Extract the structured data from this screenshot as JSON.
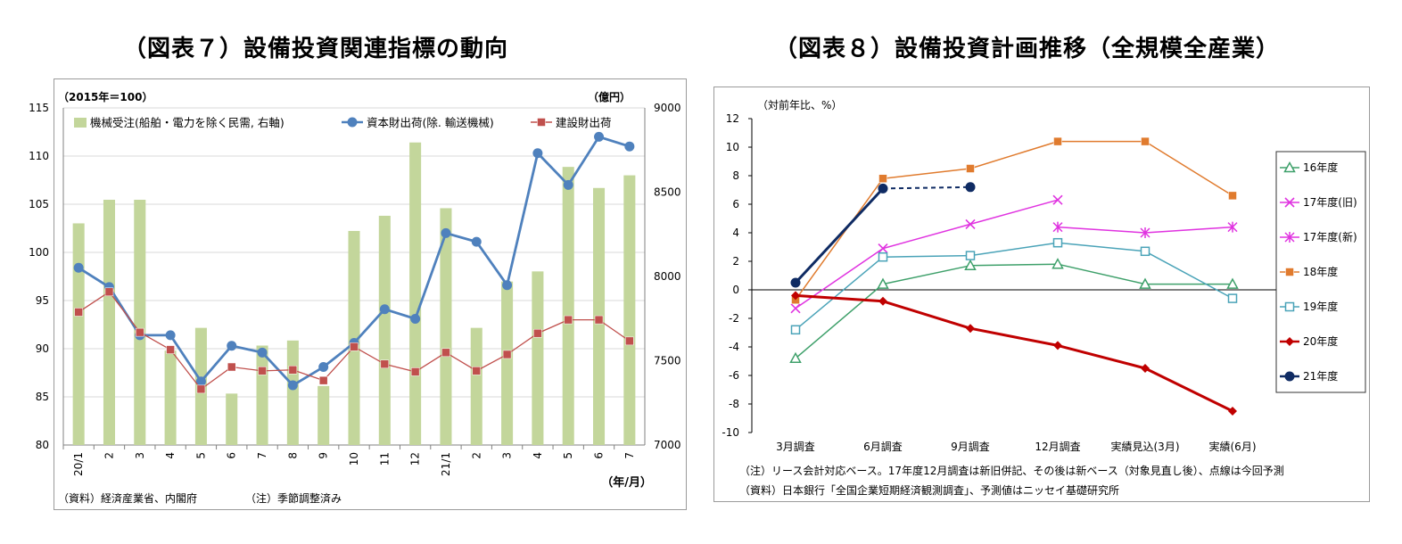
{
  "left_title": "（図表７）設備投資関連指標の動向",
  "right_title": "（図表８）設備投資計画推移（全規模全産業）",
  "chart_data": [
    {
      "type": "bar+line",
      "title": "（図表７）設備投資関連指標の動向",
      "ylabel_left": "（2015年＝100）",
      "ylabel_right": "（億円）",
      "xlabel": "（年/月）",
      "ylim_left": [
        80,
        115
      ],
      "yticks_left": [
        "80",
        "85",
        "90",
        "95",
        "100",
        "105",
        "110",
        "115"
      ],
      "ylim_right": [
        7000,
        9000
      ],
      "yticks_right": [
        "7000",
        "7500",
        "8000",
        "8500",
        "9000"
      ],
      "categories": [
        "20/1",
        "2",
        "3",
        "4",
        "5",
        "6",
        "7",
        "8",
        "9",
        "10",
        "11",
        "12",
        "21/1",
        "2",
        "3",
        "4",
        "5",
        "6",
        "7"
      ],
      "series": [
        {
          "name": "機械受注(船舶・電力を除く民需, 右軸)",
          "kind": "bar",
          "axis": "right",
          "color": "#c3d69b",
          "values": [
            8315,
            8455,
            8455,
            7560,
            7695,
            7305,
            7590,
            7620,
            7350,
            8270,
            8360,
            8795,
            8405,
            7695,
            7970,
            8030,
            8650,
            8525,
            8600
          ]
        },
        {
          "name": "資本財出荷(除. 輸送機械)",
          "kind": "line",
          "axis": "left",
          "color": "#4f81bd",
          "marker": "circle",
          "values": [
            98.4,
            96.4,
            91.4,
            91.4,
            86.6,
            90.3,
            89.6,
            86.2,
            88.1,
            90.6,
            94.1,
            93.1,
            102.0,
            101.1,
            96.6,
            110.3,
            107.0,
            112.0,
            111.0
          ]
        },
        {
          "name": "建設財出荷",
          "kind": "line",
          "axis": "left",
          "color": "#c0504d",
          "marker": "square",
          "values": [
            93.8,
            95.9,
            91.7,
            89.9,
            85.8,
            88.1,
            87.7,
            87.8,
            86.7,
            90.2,
            88.4,
            87.6,
            89.6,
            87.7,
            89.4,
            91.6,
            93.0,
            93.0,
            90.8
          ]
        }
      ],
      "legend_position": "top",
      "notes": [
        "（資料）経済産業省、内閣府",
        "（注）季節調整済み"
      ]
    },
    {
      "type": "line",
      "title": "（図表８）設備投資計画推移（全規模全産業）",
      "ylabel": "（対前年比、%）",
      "ylim": [
        -10,
        12
      ],
      "yticks": [
        "12",
        "10",
        "8",
        "6",
        "4",
        "2",
        "0",
        "-2",
        "-4",
        "-6",
        "-8",
        "-10"
      ],
      "categories": [
        "3月調査",
        "6月調査",
        "9月調査",
        "12月調査",
        "実績見込(3月)",
        "実績(6月)"
      ],
      "series": [
        {
          "name": "16年度",
          "color": "#3ea06a",
          "marker": "triangle-open",
          "values": [
            -4.8,
            0.4,
            1.7,
            1.8,
            0.4,
            0.4
          ]
        },
        {
          "name": "17年度(旧)",
          "color": "#e033e0",
          "marker": "x",
          "values": [
            -1.3,
            2.9,
            4.6,
            6.3,
            null,
            null
          ]
        },
        {
          "name": "17年度(新)",
          "color": "#e033e0",
          "marker": "star",
          "values": [
            null,
            null,
            null,
            4.4,
            4.0,
            4.4
          ]
        },
        {
          "name": "18年度",
          "color": "#e07b2e",
          "marker": "square",
          "values": [
            -0.7,
            7.8,
            8.5,
            10.4,
            10.4,
            6.6
          ]
        },
        {
          "name": "19年度",
          "color": "#4aa3b8",
          "marker": "square-open",
          "values": [
            -2.8,
            2.3,
            2.4,
            3.3,
            2.7,
            -0.6
          ]
        },
        {
          "name": "20年度",
          "color": "#c00000",
          "marker": "diamond",
          "values": [
            -0.4,
            -0.8,
            -2.7,
            -3.9,
            -5.5,
            -8.5
          ]
        },
        {
          "name": "21年度",
          "color": "#0f2b63",
          "marker": "circle",
          "values": [
            0.5,
            7.1,
            7.2,
            null,
            null,
            null
          ],
          "dashed_from_index": 1
        }
      ],
      "legend_position": "right",
      "notes": [
        "（注）リース会計対応ベース。17年度12月調査は新旧併記、その後は新ベース（対象見直し後）、点線は今回予測",
        "（資料）日本銀行「全国企業短期経済観測調査」、予測値はニッセイ基礎研究所"
      ]
    }
  ]
}
